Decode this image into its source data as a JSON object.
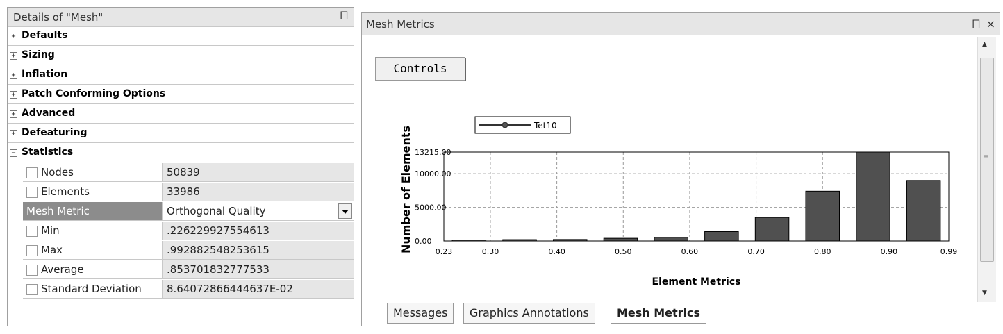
{
  "details": {
    "title": "Details of \"Mesh\"",
    "pin_glyph": "⨅",
    "categories": [
      {
        "label": "Defaults",
        "state": "+"
      },
      {
        "label": "Sizing",
        "state": "+"
      },
      {
        "label": "Inflation",
        "state": "+"
      },
      {
        "label": "Patch Conforming Options",
        "state": "+"
      },
      {
        "label": "Advanced",
        "state": "+"
      },
      {
        "label": "Defeaturing",
        "state": "+"
      },
      {
        "label": "Statistics",
        "state": "−"
      }
    ],
    "stats": [
      {
        "key": "Nodes",
        "value": "50839"
      },
      {
        "key": "Elements",
        "value": "33986"
      },
      {
        "key": "Mesh Metric",
        "value": "Orthogonal Quality",
        "selected": true
      },
      {
        "key": "Min",
        "value": ".226229927554613"
      },
      {
        "key": "Max",
        "value": ".992882548253615"
      },
      {
        "key": "Average",
        "value": ".853701832777533"
      },
      {
        "key": "Standard Deviation",
        "value": "8.64072866444637E-02"
      }
    ]
  },
  "metrics_panel": {
    "title": "Mesh Metrics",
    "pin_glyph": "⨅",
    "close_glyph": "×",
    "controls_label": "Controls",
    "tabs": [
      {
        "label": "Messages"
      },
      {
        "label": "Graphics Annotations"
      },
      {
        "label": "Mesh Metrics",
        "active": true
      }
    ]
  },
  "chart_data": {
    "type": "bar",
    "xlabel": "Element Metrics",
    "ylabel": "Number of Elements",
    "legend": "Tet10",
    "legend_position": "top-left",
    "xlim": [
      0.23,
      0.99
    ],
    "ylim": [
      0,
      13215
    ],
    "x_ticks": [
      {
        "v": 0.23,
        "label": "0.23"
      },
      {
        "v": 0.3,
        "label": "0.30"
      },
      {
        "v": 0.4,
        "label": "0.40"
      },
      {
        "v": 0.5,
        "label": "0.50"
      },
      {
        "v": 0.6,
        "label": "0.60"
      },
      {
        "v": 0.7,
        "label": "0.70"
      },
      {
        "v": 0.8,
        "label": "0.80"
      },
      {
        "v": 0.9,
        "label": "0.90"
      },
      {
        "v": 0.99,
        "label": "0.99"
      }
    ],
    "y_ticks": [
      {
        "v": 0,
        "label": "0.00"
      },
      {
        "v": 5000,
        "label": "5000.00"
      },
      {
        "v": 10000,
        "label": "10000.00"
      },
      {
        "v": 13215,
        "label": "13215.00"
      }
    ],
    "bars": [
      {
        "x": 0.268,
        "value": 150
      },
      {
        "x": 0.344,
        "value": 200
      },
      {
        "x": 0.42,
        "value": 220
      },
      {
        "x": 0.496,
        "value": 400
      },
      {
        "x": 0.572,
        "value": 550
      },
      {
        "x": 0.648,
        "value": 1400
      },
      {
        "x": 0.724,
        "value": 3500
      },
      {
        "x": 0.8,
        "value": 7400
      },
      {
        "x": 0.876,
        "value": 13215
      },
      {
        "x": 0.952,
        "value": 9000
      }
    ],
    "bar_width": 0.0507,
    "grid": true,
    "bar_color": "#505050"
  }
}
